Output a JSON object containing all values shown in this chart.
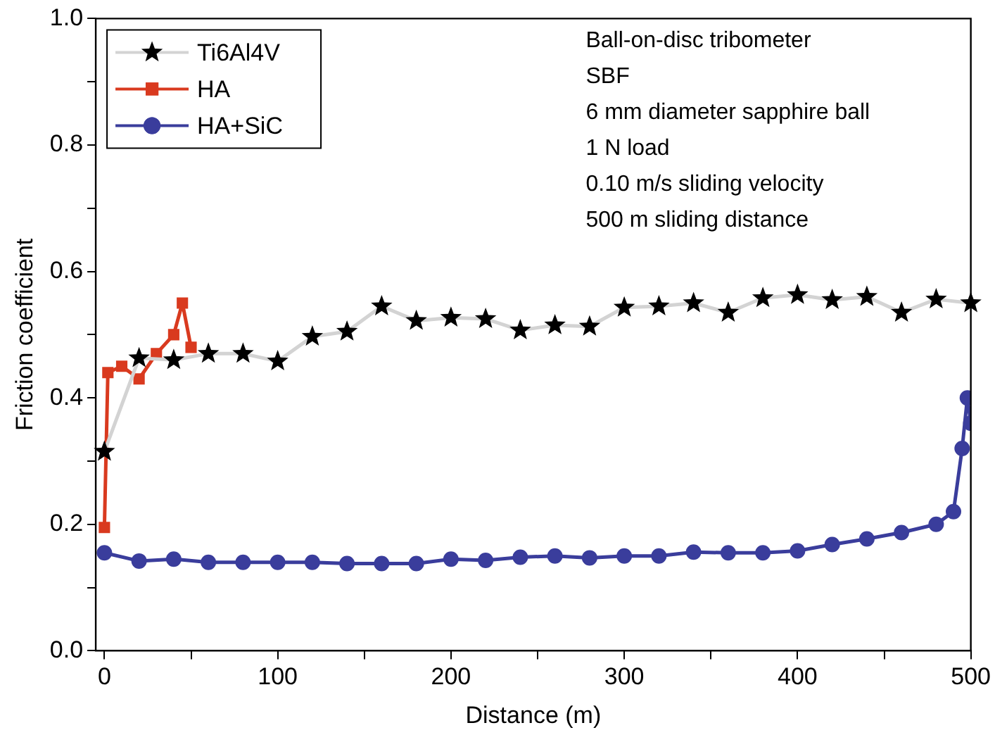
{
  "chart_data": {
    "type": "line",
    "xlabel": "Distance (m)",
    "ylabel": "Friction coefficient",
    "xlim": [
      -5,
      500
    ],
    "xticks": [
      {
        "value": 0,
        "label": "0"
      },
      {
        "value": 50,
        "label": null
      },
      100,
      {
        "value": 150,
        "label": null
      },
      200,
      {
        "value": 250,
        "label": null
      },
      300,
      {
        "value": 350,
        "label": null
      },
      400,
      {
        "value": 450,
        "label": null
      },
      500
    ],
    "ylim": [
      0,
      1
    ],
    "yticks": [
      {
        "value": 0,
        "label": "0.0"
      },
      {
        "value": 0.1,
        "label": null
      },
      0.2,
      {
        "value": 0.3,
        "label": null
      },
      0.4,
      {
        "value": 0.5,
        "label": null
      },
      0.6,
      {
        "value": 0.7,
        "label": null
      },
      0.8,
      {
        "value": 0.9,
        "label": null
      },
      {
        "value": 1.0,
        "label": "1.0"
      }
    ],
    "grid": false,
    "legend": "top left",
    "line_style": "solid",
    "annotations": [
      "Ball-on-disc tribometer",
      "SBF",
      "6 mm diameter sapphire ball",
      "1 N load",
      "0.10 m/s sliding velocity",
      "500 m sliding distance"
    ],
    "series": [
      {
        "name": "Ti6Al4V",
        "color": "#d3d3d3",
        "marker": "star",
        "x": [
          0,
          20,
          40,
          60,
          80,
          100,
          120,
          140,
          160,
          180,
          200,
          220,
          240,
          260,
          280,
          300,
          320,
          340,
          360,
          380,
          400,
          420,
          440,
          460,
          480,
          500
        ],
        "values": [
          0.315,
          0.463,
          0.46,
          0.47,
          0.47,
          0.458,
          0.497,
          0.505,
          0.545,
          0.522,
          0.527,
          0.525,
          0.507,
          0.515,
          0.513,
          0.543,
          0.545,
          0.55,
          0.535,
          0.558,
          0.563,
          0.555,
          0.56,
          0.535,
          0.556,
          0.55
        ]
      },
      {
        "name": "HA",
        "color": "#d93a1f",
        "marker": "square",
        "x": [
          0,
          2,
          10,
          20,
          30,
          40,
          45,
          50
        ],
        "values": [
          0.195,
          0.44,
          0.45,
          0.43,
          0.47,
          0.5,
          0.55,
          0.48
        ]
      },
      {
        "name": "HA+SiC",
        "color": "#3a3d9c",
        "marker": "circle",
        "x": [
          0,
          20,
          40,
          60,
          80,
          100,
          120,
          140,
          160,
          180,
          200,
          220,
          240,
          260,
          280,
          300,
          320,
          340,
          360,
          380,
          400,
          420,
          440,
          460,
          480,
          490,
          495,
          498,
          500
        ],
        "values": [
          0.155,
          0.142,
          0.145,
          0.14,
          0.14,
          0.14,
          0.14,
          0.138,
          0.138,
          0.138,
          0.145,
          0.143,
          0.148,
          0.15,
          0.147,
          0.15,
          0.15,
          0.156,
          0.155,
          0.155,
          0.158,
          0.168,
          0.177,
          0.187,
          0.2,
          0.22,
          0.32,
          0.4,
          0.36
        ]
      }
    ]
  }
}
